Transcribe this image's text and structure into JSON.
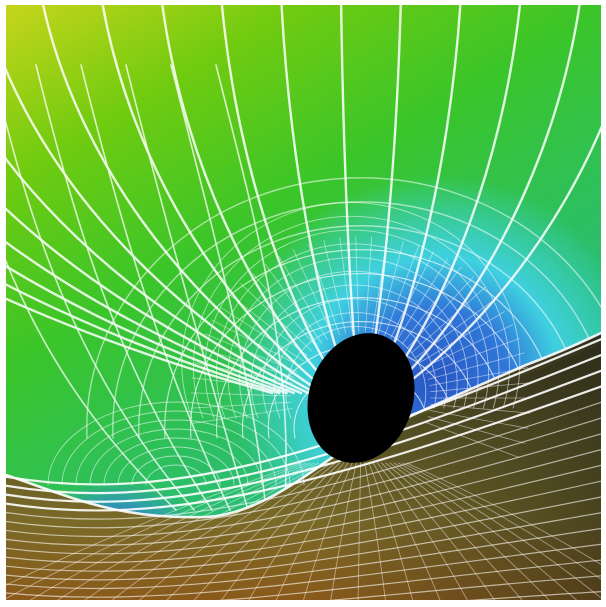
{
  "image": {
    "subject": "wireframe-gravity-well",
    "colors": {
      "top_left": "#c7d51b",
      "upper": "#5fcb12",
      "mid_green": "#2ec34a",
      "teal": "#22c2b0",
      "cyan": "#3fd8e4",
      "blue": "#2f78d8",
      "deep_blue": "#2856c4",
      "ground_dark": "#3a3a22",
      "ground_olive": "#6f6a2a",
      "ground_brown": "#8a5a1a",
      "hole": "#000000",
      "grid": "#ffffff",
      "frame": "#ffffff"
    }
  }
}
